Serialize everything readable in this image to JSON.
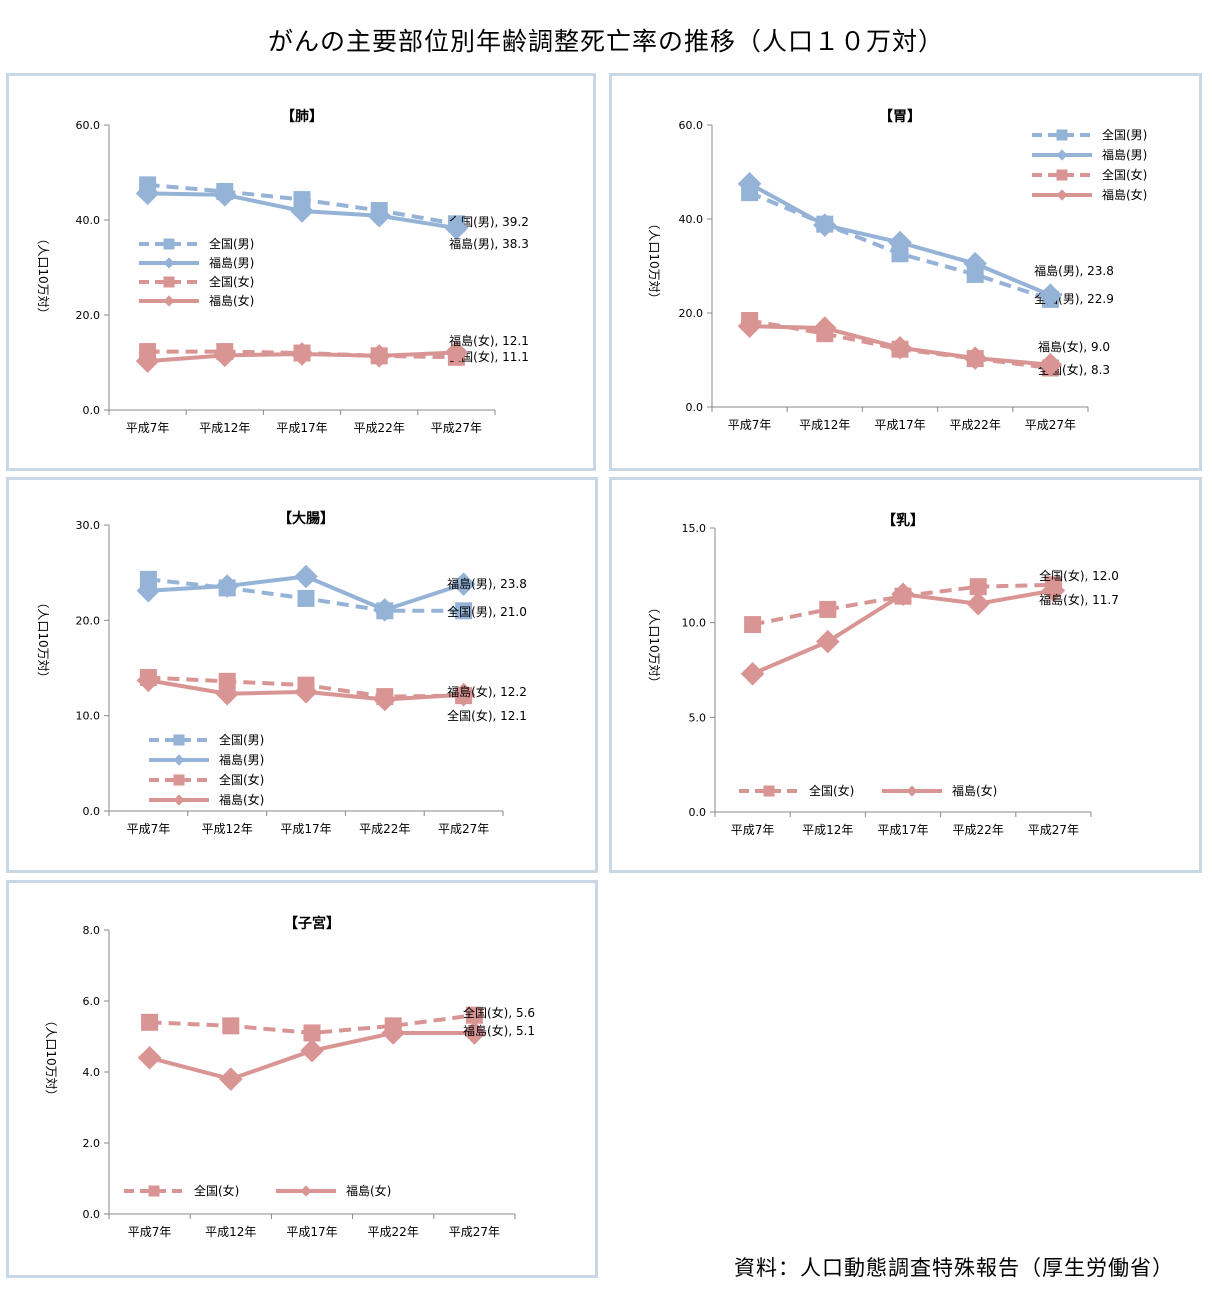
{
  "page": {
    "title": "がんの主要部位別年齢調整死亡率の推移（人口１０万対）",
    "source": "資料：人口動態調査特殊報告（厚生労働省）"
  },
  "colors": {
    "male": "#95b3d7",
    "female": "#d99594"
  },
  "chart_data": [
    {
      "id": "lung",
      "type": "line",
      "title": "【肺】",
      "ylabel": "（人口10万対）",
      "categories": [
        "平成7年",
        "平成12年",
        "平成17年",
        "平成22年",
        "平成27年"
      ],
      "ylim": [
        0,
        60
      ],
      "yticks": [
        0,
        20,
        40,
        60
      ],
      "legend": [
        "全国(男)",
        "福島(男)",
        "全国(女)",
        "福島(女)"
      ],
      "series": [
        {
          "name": "全国(男)",
          "values": [
            47.4,
            46.0,
            44.3,
            42.0,
            39.2
          ],
          "label": "全国(男), 39.2"
        },
        {
          "name": "福島(男)",
          "values": [
            45.6,
            45.3,
            41.9,
            40.9,
            38.3
          ],
          "label": "福島(男), 38.3"
        },
        {
          "name": "全国(女)",
          "values": [
            12.3,
            12.3,
            12.0,
            11.4,
            11.1
          ],
          "label": "全国(女), 11.1"
        },
        {
          "name": "福島(女)",
          "values": [
            10.3,
            11.5,
            11.8,
            11.4,
            12.1
          ],
          "label": "福島(女), 12.1"
        }
      ]
    },
    {
      "id": "stomach",
      "type": "line",
      "title": "【胃】",
      "ylabel": "（人口10万対）",
      "categories": [
        "平成7年",
        "平成12年",
        "平成17年",
        "平成22年",
        "平成27年"
      ],
      "ylim": [
        0,
        60
      ],
      "yticks": [
        0,
        20,
        40,
        60
      ],
      "legend": [
        "全国(男)",
        "福島(男)",
        "全国(女)",
        "福島(女)"
      ],
      "series": [
        {
          "name": "全国(男)",
          "values": [
            45.6,
            38.9,
            32.6,
            28.2,
            22.9
          ],
          "label": "全国(男), 22.9"
        },
        {
          "name": "福島(男)",
          "values": [
            47.5,
            38.7,
            35.0,
            30.5,
            23.8
          ],
          "label": "福島(男), 23.8"
        },
        {
          "name": "全国(女)",
          "values": [
            18.4,
            15.6,
            12.3,
            10.3,
            8.3
          ],
          "label": "全国(女), 8.3"
        },
        {
          "name": "福島(女)",
          "values": [
            17.2,
            16.8,
            12.6,
            10.4,
            9.0
          ],
          "label": "福島(女), 9.0"
        }
      ]
    },
    {
      "id": "colon",
      "type": "line",
      "title": "【大腸】",
      "ylabel": "（人口10万対）",
      "categories": [
        "平成7年",
        "平成12年",
        "平成17年",
        "平成22年",
        "平成27年"
      ],
      "ylim": [
        0,
        30
      ],
      "yticks": [
        0,
        10,
        20,
        30
      ],
      "legend": [
        "全国(男)",
        "福島(男)",
        "全国(女)",
        "福島(女)"
      ],
      "series": [
        {
          "name": "全国(男)",
          "values": [
            24.3,
            23.4,
            22.3,
            21.0,
            21.0
          ],
          "label": "全国(男), 21.0"
        },
        {
          "name": "福島(男)",
          "values": [
            23.1,
            23.6,
            24.6,
            21.1,
            23.8
          ],
          "label": "福島(男), 23.8"
        },
        {
          "name": "全国(女)",
          "values": [
            14.0,
            13.6,
            13.2,
            12.0,
            12.1
          ],
          "label": "全国(女), 12.1"
        },
        {
          "name": "福島(女)",
          "values": [
            13.7,
            12.3,
            12.5,
            11.7,
            12.2
          ],
          "label": "福島(女), 12.2"
        }
      ]
    },
    {
      "id": "breast",
      "type": "line",
      "title": "【乳】",
      "ylabel": "（人口10万対）",
      "categories": [
        "平成7年",
        "平成12年",
        "平成17年",
        "平成22年",
        "平成27年"
      ],
      "ylim": [
        0,
        15
      ],
      "yticks": [
        0,
        5,
        10,
        15
      ],
      "legend": [
        "全国(女)",
        "福島(女)"
      ],
      "series": [
        {
          "name": "全国(女)",
          "values": [
            9.9,
            10.7,
            11.4,
            11.9,
            12.0
          ],
          "label": "全国(女), 12.0"
        },
        {
          "name": "福島(女)",
          "values": [
            7.3,
            9.0,
            11.5,
            11.0,
            11.7
          ],
          "label": "福島(女), 11.7"
        }
      ]
    },
    {
      "id": "uterus",
      "type": "line",
      "title": "【子宮】",
      "ylabel": "（人口10万対）",
      "categories": [
        "平成7年",
        "平成12年",
        "平成17年",
        "平成22年",
        "平成27年"
      ],
      "ylim": [
        0,
        8
      ],
      "yticks": [
        0,
        2,
        4,
        6,
        8
      ],
      "legend": [
        "全国(女)",
        "福島(女)"
      ],
      "series": [
        {
          "name": "全国(女)",
          "values": [
            5.4,
            5.3,
            5.1,
            5.3,
            5.6
          ],
          "label": "全国(女), 5.6"
        },
        {
          "name": "福島(女)",
          "values": [
            4.4,
            3.8,
            4.6,
            5.1,
            5.1
          ],
          "label": "福島(女), 5.1"
        }
      ]
    }
  ]
}
